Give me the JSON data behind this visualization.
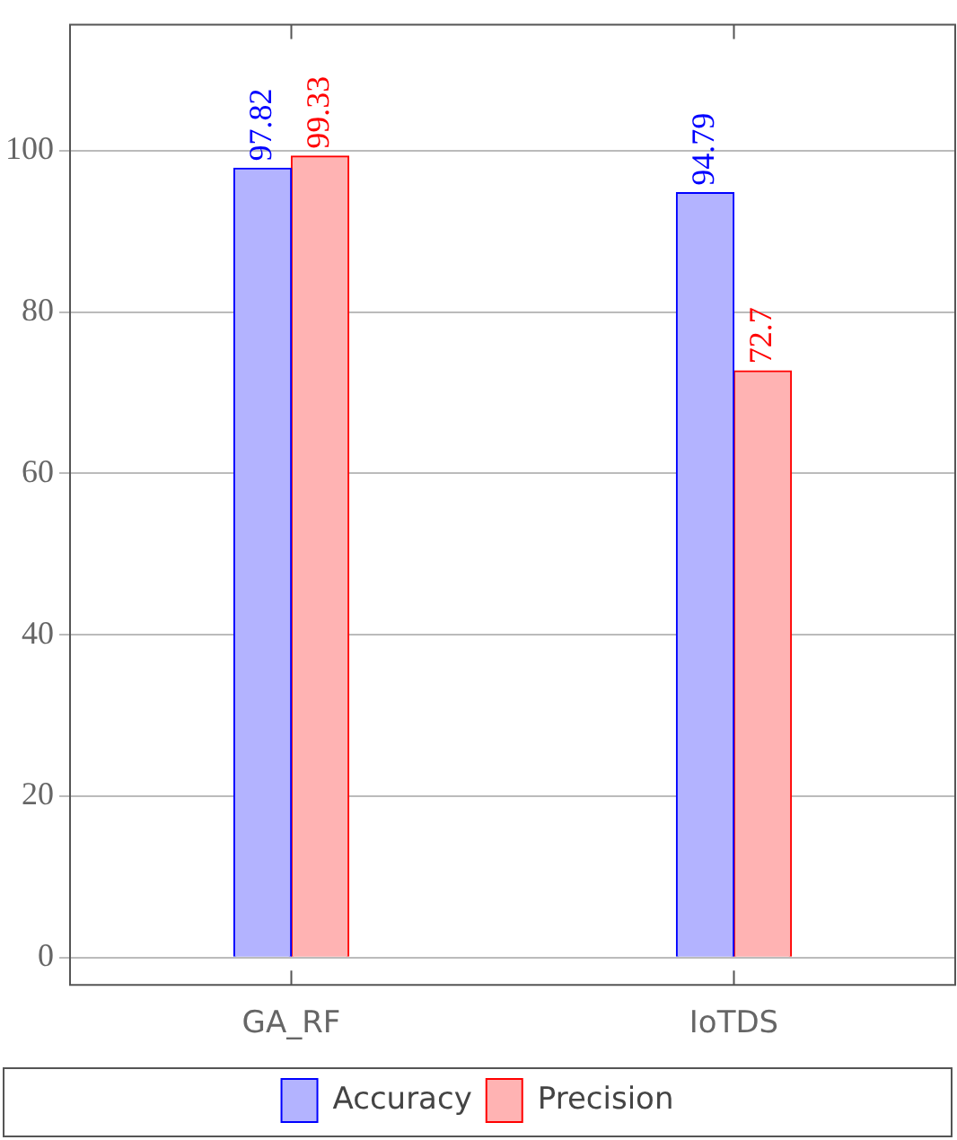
{
  "chart_data": {
    "type": "bar",
    "categories": [
      "GA_RF",
      "IoTDS"
    ],
    "series": [
      {
        "name": "Accuracy",
        "color": "#b3b3ff",
        "values": [
          97.82,
          94.79
        ]
      },
      {
        "name": "Precision",
        "color": "#ffb3b3",
        "values": [
          99.33,
          72.7
        ]
      }
    ],
    "ylim": [
      -3.4,
      115.6
    ],
    "yticks": [
      0,
      20,
      40,
      60,
      80,
      100
    ],
    "grid": "y",
    "legend": "bottom",
    "data_labels": true
  }
}
